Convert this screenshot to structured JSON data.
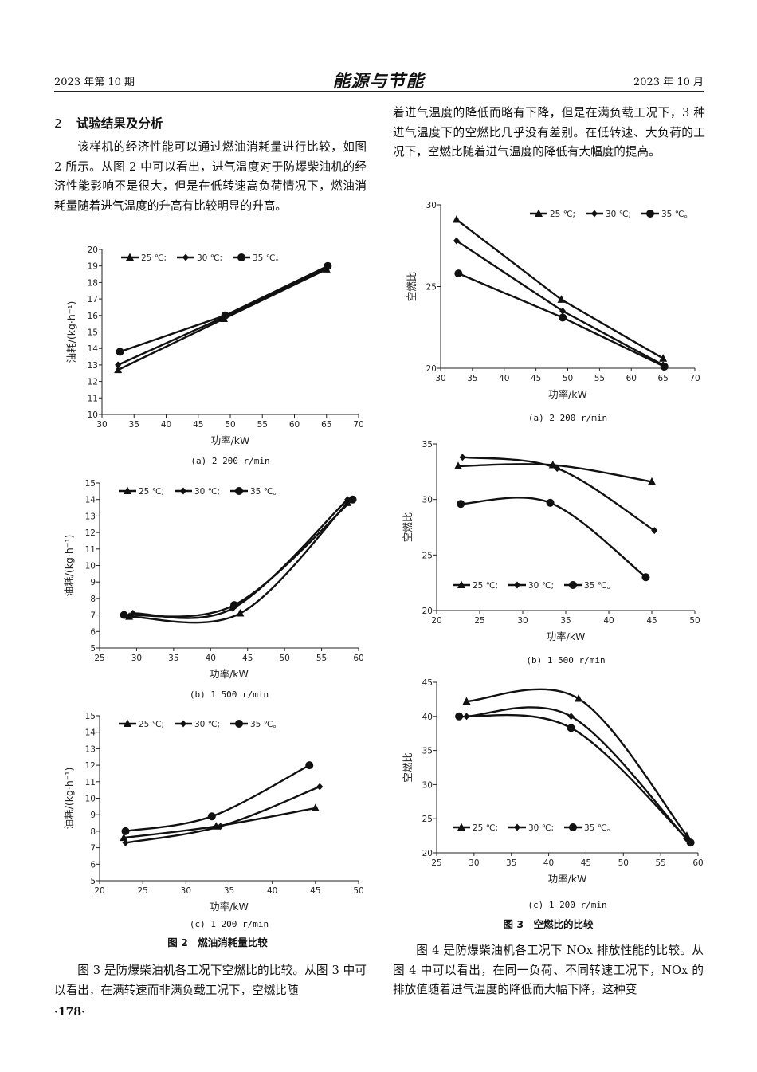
{
  "header": {
    "issue": "2023 年第 10 期",
    "journal": "能源与节能",
    "date": "2023 年 10 月"
  },
  "section": {
    "number": "2",
    "title": "试验结果及分析"
  },
  "left_para_1": "该样机的经济性能可以通过燃油消耗量进行比较，如图 2 所示。从图 2 中可以看出，进气温度对于防爆柴油机的经济性能影响不是很大，但是在低转速高负荷情况下，燃油消耗量随着进气温度的升高有比较明显的升高。",
  "right_para_1": "着进气温度的降低而略有下降，但是在满负载工况下，3 种进气温度下的空燃比几乎没有差别。在低转速、大负荷的工况下，空燃比随着进气温度的降低有大幅度的提高。",
  "left_para_2": "图 3 是防爆柴油机各工况下空燃比的比较。从图 3 中可以看出，在满转速而非满负载工况下，空燃比随",
  "right_para_2": "图 4 是防爆柴油机各工况下 NOx 排放性能的比较。从图 4 中可以看出，在同一负荷、不同转速工况下，NOx 的排放值随着进气温度的降低而大幅下降，这种变",
  "fig2_caption": "图 2　燃油消耗量比较",
  "fig3_caption": "图 3　空燃比的比较",
  "page_number": "·178·",
  "chart_data": [
    {
      "id": "fig2a",
      "type": "line",
      "subcaption": "(a)  2 200 r/min",
      "xlabel": "功率/kW",
      "ylabel": "油耗/(kg·h⁻¹)",
      "xlim": [
        30,
        70
      ],
      "ylim": [
        10,
        20
      ],
      "xticks": [
        30,
        35,
        40,
        45,
        50,
        55,
        60,
        65,
        70
      ],
      "yticks": [
        10,
        11,
        12,
        13,
        14,
        15,
        16,
        17,
        18,
        19,
        20
      ],
      "smooth": false,
      "legend": "top-left",
      "series": [
        {
          "name": "25 ℃;",
          "marker": "triangle",
          "x": [
            32.5,
            49,
            65
          ],
          "y": [
            12.7,
            15.8,
            18.8
          ]
        },
        {
          "name": "30 ℃;",
          "marker": "diamond",
          "x": [
            32.5,
            49,
            65
          ],
          "y": [
            13.0,
            15.9,
            18.9
          ]
        },
        {
          "name": "35 ℃。",
          "marker": "circle",
          "x": [
            32.8,
            49.2,
            65.2
          ],
          "y": [
            13.8,
            16.0,
            19.0
          ]
        }
      ]
    },
    {
      "id": "fig2b",
      "type": "line",
      "subcaption": "(b)  1 500 r/min",
      "xlabel": "功率/kW",
      "ylabel": "油耗/(kg·h⁻¹)",
      "xlim": [
        25,
        60
      ],
      "ylim": [
        5,
        15
      ],
      "xticks": [
        25,
        30,
        35,
        40,
        45,
        50,
        55,
        60
      ],
      "yticks": [
        5,
        6,
        7,
        8,
        9,
        10,
        11,
        12,
        13,
        14,
        15
      ],
      "smooth": true,
      "legend": "top-left",
      "series": [
        {
          "name": "25 ℃;",
          "marker": "triangle",
          "x": [
            29,
            44,
            58.5
          ],
          "y": [
            6.9,
            7.1,
            13.8
          ]
        },
        {
          "name": "30 ℃;",
          "marker": "diamond",
          "x": [
            29.5,
            43,
            58.5
          ],
          "y": [
            7.1,
            7.4,
            14.0
          ]
        },
        {
          "name": "35 ℃。",
          "marker": "circle",
          "x": [
            28.3,
            43.2,
            59.2
          ],
          "y": [
            7.0,
            7.6,
            14.0
          ]
        }
      ]
    },
    {
      "id": "fig2c",
      "type": "line",
      "subcaption": "(c)  1 200 r/min",
      "xlabel": "功率/kW",
      "ylabel": "油耗/(kg·h⁻¹)",
      "xlim": [
        20,
        50
      ],
      "ylim": [
        5,
        15
      ],
      "xticks": [
        20,
        25,
        30,
        35,
        40,
        45,
        50
      ],
      "yticks": [
        5,
        6,
        7,
        8,
        9,
        10,
        11,
        12,
        13,
        14,
        15
      ],
      "smooth": true,
      "legend": "top-left",
      "series": [
        {
          "name": "25 ℃;",
          "marker": "triangle",
          "x": [
            22.8,
            33.5,
            45
          ],
          "y": [
            7.6,
            8.3,
            9.4
          ]
        },
        {
          "name": "30 ℃;",
          "marker": "diamond",
          "x": [
            23,
            34,
            45.5
          ],
          "y": [
            7.3,
            8.3,
            10.7
          ]
        },
        {
          "name": "35 ℃。",
          "marker": "circle",
          "x": [
            23,
            33,
            44.3
          ],
          "y": [
            8.0,
            8.9,
            12.0
          ]
        }
      ]
    },
    {
      "id": "fig3a",
      "type": "line",
      "subcaption": "(a)  2 200 r/min",
      "xlabel": "功率/kW",
      "ylabel": "空燃比",
      "xlim": [
        30,
        70
      ],
      "ylim": [
        20,
        30
      ],
      "xticks": [
        30,
        35,
        40,
        45,
        50,
        55,
        60,
        65,
        70
      ],
      "yticks": [
        20,
        25,
        30
      ],
      "smooth": false,
      "legend": "top-right",
      "series": [
        {
          "name": "25 ℃;",
          "marker": "triangle",
          "x": [
            32.5,
            49,
            65
          ],
          "y": [
            29.1,
            24.2,
            20.6
          ]
        },
        {
          "name": "30 ℃;",
          "marker": "diamond",
          "x": [
            32.5,
            49.2,
            65
          ],
          "y": [
            27.8,
            23.5,
            20.2
          ]
        },
        {
          "name": "35 ℃。",
          "marker": "circle",
          "x": [
            32.8,
            49.2,
            65.2
          ],
          "y": [
            25.8,
            23.1,
            20.1
          ]
        }
      ]
    },
    {
      "id": "fig3b",
      "type": "line",
      "subcaption": "(b)  1 500 r/min",
      "xlabel": "功率/kW",
      "ylabel": "空燃比",
      "xlim": [
        20,
        50
      ],
      "ylim": [
        20,
        35
      ],
      "xticks": [
        20,
        25,
        30,
        35,
        40,
        45,
        50
      ],
      "yticks": [
        20,
        25,
        30,
        35
      ],
      "smooth": true,
      "legend": "bottom-left",
      "series": [
        {
          "name": "25 ℃;",
          "marker": "triangle",
          "x": [
            22.5,
            33.5,
            45
          ],
          "y": [
            33.0,
            33.1,
            31.6
          ]
        },
        {
          "name": "30 ℃;",
          "marker": "diamond",
          "x": [
            23,
            34,
            45.3
          ],
          "y": [
            33.8,
            32.8,
            27.2
          ]
        },
        {
          "name": "35 ℃。",
          "marker": "circle",
          "x": [
            22.8,
            33.2,
            44.3
          ],
          "y": [
            29.6,
            29.7,
            23.0
          ]
        }
      ]
    },
    {
      "id": "fig3c",
      "type": "line",
      "subcaption": "(c)  1 200 r/min",
      "xlabel": "功率/kW",
      "ylabel": "空燃比",
      "xlim": [
        25,
        60
      ],
      "ylim": [
        20,
        45
      ],
      "xticks": [
        25,
        30,
        35,
        40,
        45,
        50,
        55,
        60
      ],
      "yticks": [
        20,
        25,
        30,
        35,
        40,
        45
      ],
      "smooth": true,
      "legend": "bottom-left",
      "series": [
        {
          "name": "25 ℃;",
          "marker": "triangle",
          "x": [
            29,
            44,
            58.5
          ],
          "y": [
            42.2,
            42.6,
            22.5
          ]
        },
        {
          "name": "30 ℃;",
          "marker": "diamond",
          "x": [
            29,
            43,
            58.5
          ],
          "y": [
            40.0,
            40.0,
            22.0
          ]
        },
        {
          "name": "35 ℃。",
          "marker": "circle",
          "x": [
            28,
            43,
            59
          ],
          "y": [
            40.0,
            38.3,
            21.5
          ]
        }
      ]
    }
  ]
}
